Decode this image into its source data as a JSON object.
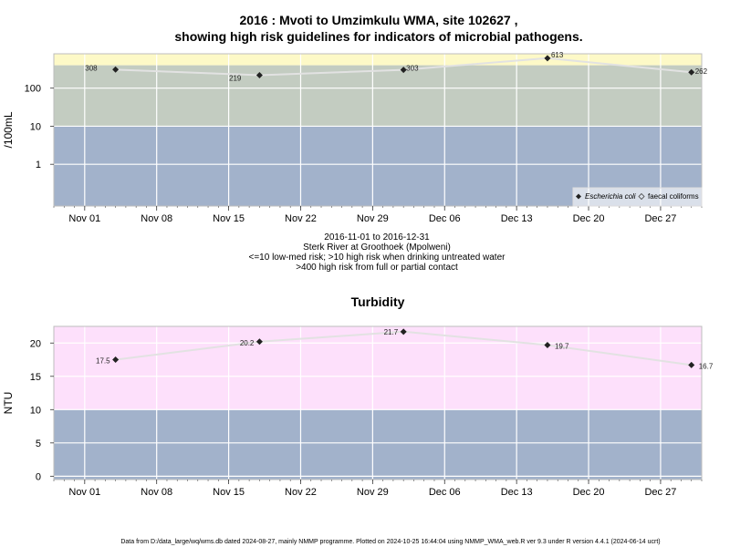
{
  "title_line1": "2016 : Mvoti to Umzimkulu WMA, site 102627 ,",
  "title_line2": "showing high risk guidelines for indicators of microbial pathogens.",
  "caption": [
    "2016-11-01 to 2016-12-31",
    "Sterk River at Groothoek (Mpolweni)",
    "<=10 low-med risk; >10 high risk when drinking untreated water",
    ">400 high risk from full or partial contact"
  ],
  "footer": "Data from D:/data_large/wq/wms.db dated 2024-08-27, mainly NMMP programme. Plotted on 2024-10-25 16:44:04 using NMMP_WMA_web.R ver 9.3 under R version 4.4.1 (2024-06-14 ucrt)",
  "colors": {
    "low_band": "#a2b2cb",
    "mid_band": "#c3ccc1",
    "high_band": "#fdf9c7",
    "turb_high_band": "#fde0fb",
    "grid": "#ffffff",
    "line": "#e2e2e2",
    "marker": "#222222"
  },
  "chart_data": [
    {
      "type": "line",
      "title": "",
      "ylabel": "/100mL",
      "yscale": "log",
      "x_ticks": [
        "Nov 01",
        "Nov 08",
        "Nov 15",
        "Nov 22",
        "Nov 29",
        "Dec 06",
        "Dec 13",
        "Dec 20",
        "Dec 27"
      ],
      "y_ticks": [
        "1",
        "10",
        "100"
      ],
      "xlim": [
        "2016-10-29",
        "2016-12-31"
      ],
      "bands": [
        {
          "from": 0.08,
          "to": 10,
          "color": "#a2b2cb"
        },
        {
          "from": 10,
          "to": 400,
          "color": "#c3ccc1"
        },
        {
          "from": 400,
          "to": 800,
          "color": "#fdf9c7"
        }
      ],
      "series": [
        {
          "name": "Escherichia coli",
          "x": [
            "2016-11-04",
            "2016-11-18",
            "2016-12-02",
            "2016-12-16",
            "2016-12-30"
          ],
          "values": [
            308,
            219,
            303,
            613,
            262
          ],
          "labels": [
            "308",
            "219",
            "303",
            "613",
            "262"
          ]
        }
      ],
      "legend": {
        "position": "bottom-right",
        "entries": [
          "Escherichia coli",
          "faecal coliforms"
        ]
      }
    },
    {
      "type": "line",
      "title": "Turbidity",
      "ylabel": "NTU",
      "x_ticks": [
        "Nov 01",
        "Nov 08",
        "Nov 15",
        "Nov 22",
        "Nov 29",
        "Dec 06",
        "Dec 13",
        "Dec 20",
        "Dec 27"
      ],
      "y_ticks": [
        "0",
        "5",
        "10",
        "15",
        "20"
      ],
      "xlim": [
        "2016-10-29",
        "2016-12-31"
      ],
      "ylim": [
        -0.5,
        22.5
      ],
      "bands": [
        {
          "from": -0.5,
          "to": 10,
          "color": "#a2b2cb"
        },
        {
          "from": 10,
          "to": 22.5,
          "color": "#fde0fb"
        }
      ],
      "series": [
        {
          "x": [
            "2016-11-04",
            "2016-11-18",
            "2016-12-02",
            "2016-12-16",
            "2016-12-30"
          ],
          "values": [
            17.5,
            20.2,
            21.7,
            19.7,
            16.7
          ],
          "labels": [
            "17.5",
            "20.2",
            "21.7",
            "19.7",
            "16.7"
          ]
        }
      ]
    }
  ]
}
